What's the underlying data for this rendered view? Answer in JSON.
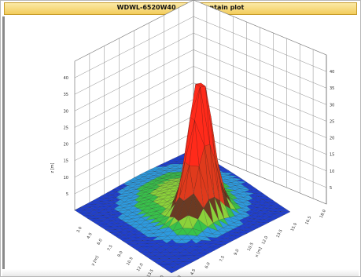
{
  "window": {
    "title": "WDWL-6520W40   3D mountain plot"
  },
  "chart_data": {
    "type": "surface3d",
    "title": "WDWL-6520W40   3D mountain plot",
    "zlabel": "z [m]",
    "xlabel": "x [m]",
    "ylabel": "y [m]",
    "zlim": [
      0,
      45
    ],
    "z_ticks": [
      "5",
      "10",
      "15",
      "20",
      "25",
      "30",
      "35",
      "40"
    ],
    "x_ticks": [
      "3.0",
      "4.5",
      "6.0",
      "7.5",
      "9.0",
      "10.5",
      "12.0",
      "13.5",
      "15.0",
      "16.5",
      "18.0"
    ],
    "y_ticks": [
      "3.0",
      "4.5",
      "6.0",
      "7.5",
      "9.0",
      "10.5",
      "12.0",
      "13.5",
      "15.0"
    ],
    "grid": true,
    "colormap": [
      "#1f3fd0",
      "#2d9be0",
      "#38c24a",
      "#8bd23a",
      "#6b3a22",
      "#e03a1c",
      "#ff2a1a"
    ],
    "peak": {
      "x": 15.0,
      "y": 4.5,
      "z": 42
    }
  }
}
